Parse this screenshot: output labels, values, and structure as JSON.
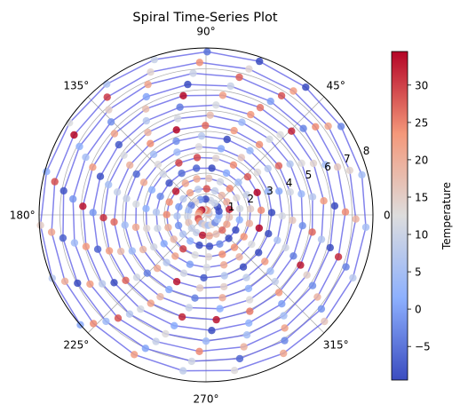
{
  "chart_data": {
    "type": "scatter",
    "projection": "polar",
    "title": "Spiral Time-Series Plot",
    "angle_tick_labels": [
      "0°",
      "45°",
      "90°",
      "135°",
      "180°",
      "225°",
      "270°",
      "315°"
    ],
    "angle_ticks_deg": [
      0,
      45,
      90,
      135,
      180,
      225,
      270,
      315
    ],
    "radial_ticks": [
      1,
      2,
      3,
      4,
      5,
      6,
      7,
      8
    ],
    "radial_tick_labels": [
      "1",
      "2",
      "3",
      "4",
      "5",
      "6",
      "7",
      "8"
    ],
    "rlim": [
      0,
      8
    ],
    "radial_label_angle_deg": 22.5,
    "grid": true,
    "series": [
      {
        "mark": "line+points",
        "line_color": "#5a5ae6",
        "theta_step_deg": 18.8,
        "r_start": 0.12,
        "r_end": 8.0,
        "n_points": 300,
        "note_values": "temperature per point follows a sinusoid with noise"
      }
    ],
    "colorbar": {
      "label": "Temperature",
      "ticks": [
        -5,
        0,
        5,
        10,
        15,
        20,
        25,
        30
      ],
      "tick_labels": [
        "−5",
        "0",
        "5",
        "10",
        "15",
        "20",
        "25",
        "30"
      ],
      "vmin": -9.5,
      "vmax": 34.5,
      "colormap": "coolwarm",
      "low_color": "#3b4cc0",
      "mid_color": "#dddddd",
      "high_color": "#b40426"
    }
  }
}
